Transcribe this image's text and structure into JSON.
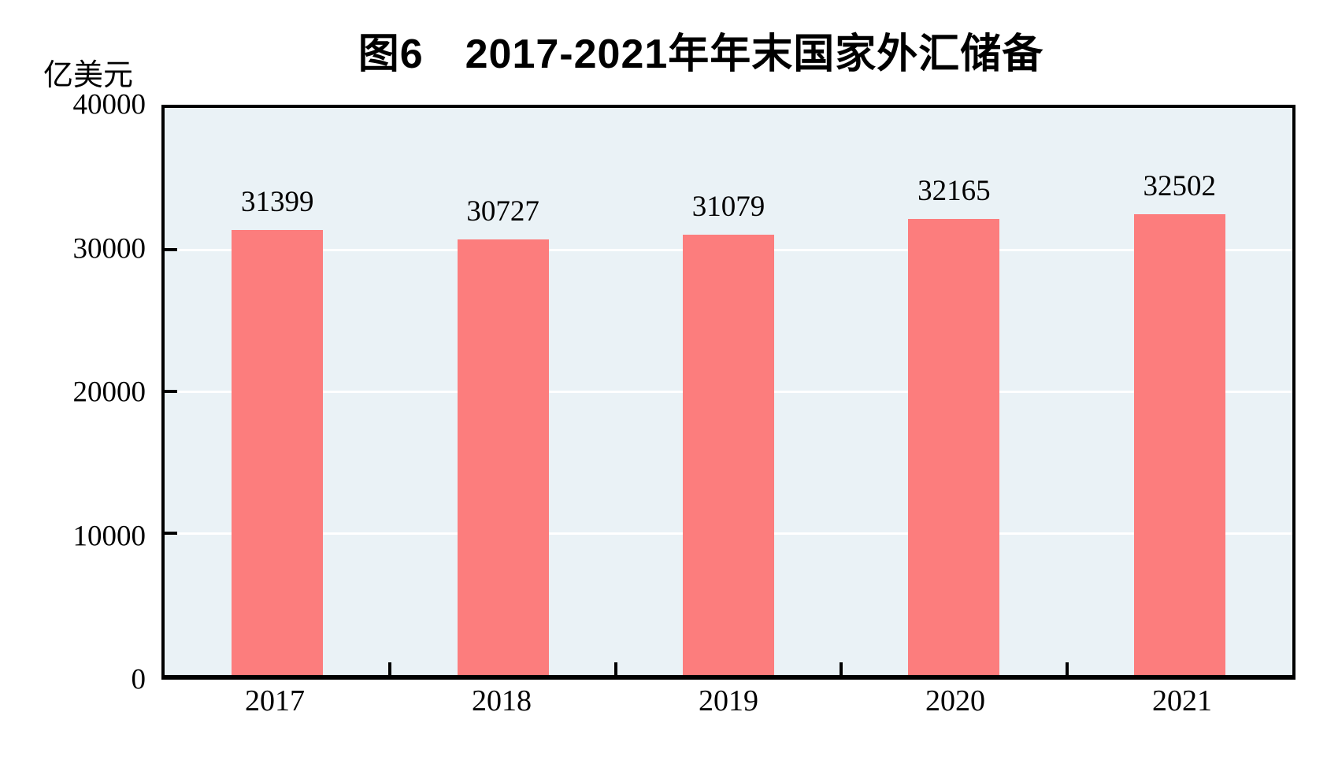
{
  "chart_data": {
    "type": "bar",
    "title": "图6　2017-2021年年末国家外汇储备",
    "categories": [
      "2017",
      "2018",
      "2019",
      "2020",
      "2021"
    ],
    "values": [
      31399,
      30727,
      31079,
      32165,
      32502
    ],
    "xlabel": "",
    "ylabel": "亿美元",
    "ylim": [
      0,
      40000
    ],
    "y_ticks": [
      0,
      10000,
      20000,
      30000,
      40000
    ],
    "grid": "horizontal",
    "legend": "none",
    "colors": {
      "bar": "#FC7D7D",
      "plot_bg": "#EAF2F6",
      "gridline": "#FFFFFF",
      "frame": "#000000",
      "text": "#000000"
    }
  }
}
